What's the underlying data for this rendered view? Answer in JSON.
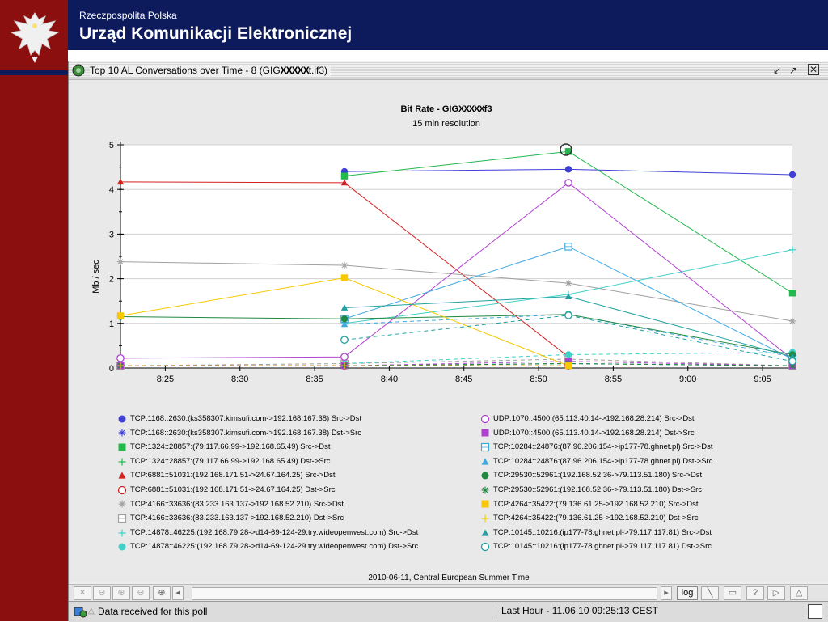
{
  "header": {
    "subtitle": "Rzeczpospolita Polska",
    "title": "Urząd Komunikacji Elektronicznej"
  },
  "window": {
    "title_prefix": "Top 10 AL Conversations over Time - 8  (GIG",
    "title_mask": "XXXXX",
    "title_suffix": "t.if3)"
  },
  "chart_meta": {
    "title_prefix": "Bit Rate - GIG",
    "title_mask": "XXXXX",
    "title_suffix": "f3",
    "subtitle": "15 min resolution",
    "footer": "2010-06-11, Central European Summer Time"
  },
  "chart_data": {
    "type": "line",
    "ylabel": "Mb / sec",
    "ylim": [
      0,
      5
    ],
    "yticks": [
      "0",
      "1",
      "2",
      "3",
      "4",
      "5"
    ],
    "x_tick_labels": [
      "8:25",
      "8:30",
      "8:35",
      "8:40",
      "8:45",
      "8:50",
      "8:55",
      "9:00",
      "9:05"
    ],
    "x": [
      "8:22",
      "8:37",
      "8:52",
      "9:07"
    ],
    "series": [
      {
        "name": "TCP:1168::2630:(ks358307.kimsufi.com->192.168.167.38) Src->Dst",
        "color": "#4040d8",
        "marker": "dot",
        "dash": false,
        "values": [
          null,
          4.4,
          4.45,
          4.33
        ]
      },
      {
        "name": "TCP:1168::2630:(ks358307.kimsufi.com->192.168.167.38) Dst->Src",
        "color": "#4040d8",
        "marker": "star",
        "dash": true,
        "values": [
          0.05,
          0.05,
          0.1,
          0.05
        ]
      },
      {
        "name": "TCP:1324::28857:(79.117.66.99->192.168.65.49) Src->Dst",
        "color": "#22b84c",
        "marker": "square",
        "dash": false,
        "values": [
          null,
          4.3,
          4.85,
          1.68
        ]
      },
      {
        "name": "TCP:1324::28857:(79.117.66.99->192.168.65.49) Dst->Src",
        "color": "#22b84c",
        "marker": "plus",
        "dash": true,
        "values": [
          0.05,
          0.05,
          0.1,
          0.05
        ]
      },
      {
        "name": "TCP:6881::51031:(192.168.171.51->24.67.164.25) Src->Dst",
        "color": "#d42020",
        "marker": "triangle",
        "dash": false,
        "values": [
          4.17,
          4.15,
          0.25,
          null
        ]
      },
      {
        "name": "TCP:6881::51031:(192.168.171.51->24.67.164.25) Dst->Src",
        "color": "#d42020",
        "marker": "ocircle",
        "dash": true,
        "values": [
          0.05,
          0.05,
          0.05,
          null
        ]
      },
      {
        "name": "TCP:4166::33636:(83.233.163.137->192.168.52.210) Src->Dst",
        "color": "#a0a0a0",
        "marker": "star",
        "dash": false,
        "values": [
          2.38,
          2.3,
          1.9,
          1.05
        ]
      },
      {
        "name": "TCP:4166::33636:(83.233.163.137->192.168.52.210) Dst->Src",
        "color": "#a0a0a0",
        "marker": "osquare",
        "dash": true,
        "values": [
          0.05,
          0.1,
          0.2,
          0.05
        ]
      },
      {
        "name": "TCP:14878::46225:(192.168.79.28->d14-69-124-29.try.wideopenwest.com) Src->Dst",
        "color": "#40d0c8",
        "marker": "plus",
        "dash": false,
        "values": [
          null,
          1.0,
          1.65,
          2.65
        ]
      },
      {
        "name": "TCP:14878::46225:(192.168.79.28->d14-69-124-29.try.wideopenwest.com) Dst->Src",
        "color": "#40d0c8",
        "marker": "dot",
        "dash": true,
        "values": [
          null,
          0.1,
          0.3,
          0.35
        ]
      },
      {
        "name": "UDP:1070::4500:(65.113.40.14->192.168.28.214) Src->Dst",
        "color": "#b040d0",
        "marker": "ocircle",
        "dash": false,
        "values": [
          0.22,
          0.25,
          4.15,
          0.2
        ]
      },
      {
        "name": "UDP:1070::4500:(65.113.40.14->192.168.28.214) Dst->Src",
        "color": "#b040d0",
        "marker": "square",
        "dash": true,
        "values": [
          0.05,
          0.05,
          0.15,
          0.05
        ]
      },
      {
        "name": "TCP:10284::24876:(87.96.206.154->ip177-78.ghnet.pl) Src->Dst",
        "color": "#40a8e0",
        "marker": "osquare",
        "dash": false,
        "values": [
          null,
          1.1,
          2.72,
          0.2
        ]
      },
      {
        "name": "TCP:10284::24876:(87.96.206.154->ip177-78.ghnet.pl) Dst->Src",
        "color": "#40a8e0",
        "marker": "triangle",
        "dash": true,
        "values": [
          null,
          0.98,
          1.2,
          0.25
        ]
      },
      {
        "name": "TCP:29530::52961:(192.168.52.36->79.113.51.180) Src->Dst",
        "color": "#208840",
        "marker": "dot",
        "dash": false,
        "values": [
          1.15,
          1.1,
          1.2,
          0.3
        ]
      },
      {
        "name": "TCP:29530::52961:(192.168.52.36->79.113.51.180) Dst->Src",
        "color": "#208840",
        "marker": "star",
        "dash": true,
        "values": [
          0.05,
          0.05,
          0.1,
          0.05
        ]
      },
      {
        "name": "TCP:4264::35422:(79.136.61.25->192.168.52.210) Src->Dst",
        "color": "#f8c800",
        "marker": "square",
        "dash": false,
        "values": [
          1.17,
          2.02,
          0.05,
          null
        ]
      },
      {
        "name": "TCP:4264::35422:(79.136.61.25->192.168.52.210) Dst->Src",
        "color": "#f8c800",
        "marker": "plus",
        "dash": true,
        "values": [
          0.05,
          0.05,
          0.05,
          null
        ]
      },
      {
        "name": "TCP:10145::10216:(ip177-78.ghnet.pl->79.117.117.81) Src->Dst",
        "color": "#20a0a0",
        "marker": "triangle",
        "dash": false,
        "values": [
          null,
          1.35,
          1.6,
          0.25
        ]
      },
      {
        "name": "TCP:10145::10216:(ip177-78.ghnet.pl->79.117.117.81) Dst->Src",
        "color": "#20a0a0",
        "marker": "ocircle",
        "dash": true,
        "values": [
          null,
          0.63,
          1.18,
          0.15
        ]
      }
    ],
    "grid": true
  },
  "toolbar": {
    "log_label": "log"
  },
  "status": {
    "message": "Data received for this poll",
    "range": "Last Hour - 11.06.10 09:25:13 CEST"
  }
}
